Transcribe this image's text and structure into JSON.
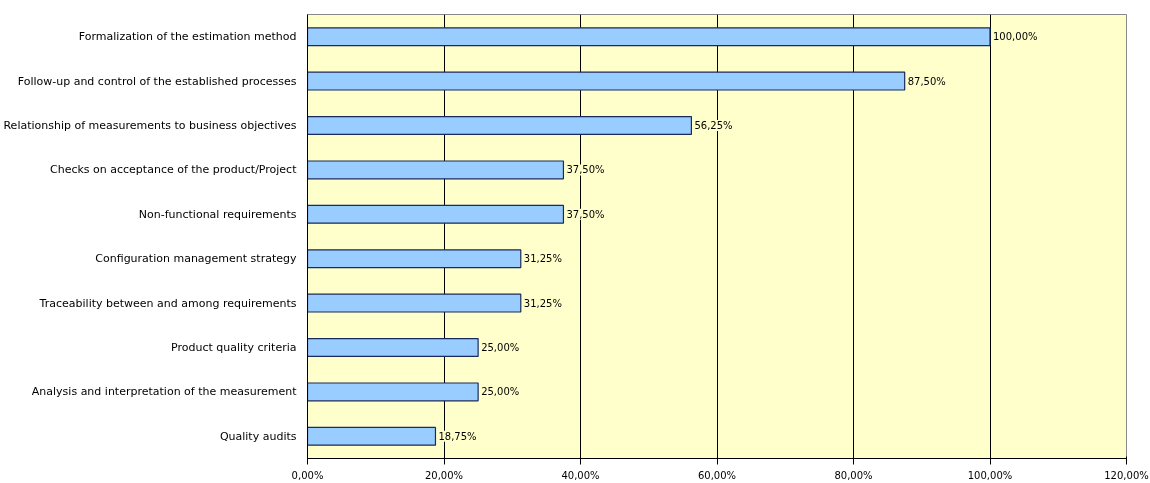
{
  "chart_data": {
    "type": "bar",
    "orientation": "horizontal",
    "categories": [
      "Formalization of the estimation method",
      "Follow-up and control of the established processes",
      "Relationship of measurements to business objectives",
      "Checks on acceptance of the product/Project",
      "Non-functional requirements",
      "Configuration management strategy",
      "Traceability between and among requirements",
      "Product quality criteria",
      "Analysis and interpretation of the measurement",
      "Quality audits"
    ],
    "values": [
      100,
      87.5,
      56.25,
      37.5,
      37.5,
      31.25,
      31.25,
      25,
      25,
      18.75
    ],
    "value_labels": [
      "100,00%",
      "87,50%",
      "56,25%",
      "37,50%",
      "37,50%",
      "31,25%",
      "31,25%",
      "25,00%",
      "25,00%",
      "18,75%"
    ],
    "color": "#99ccff",
    "xlim": [
      0,
      120
    ],
    "xticks": [
      {
        "value": 0,
        "label": "0,00%"
      },
      {
        "value": 20,
        "label": "20,00%"
      },
      {
        "value": 40,
        "label": "40,00%"
      },
      {
        "value": 60,
        "label": "60,00%"
      },
      {
        "value": 80,
        "label": "80,00%"
      },
      {
        "value": 100,
        "label": "100,00%"
      },
      {
        "value": 120,
        "label": "120,00%"
      }
    ],
    "grid": "x"
  }
}
